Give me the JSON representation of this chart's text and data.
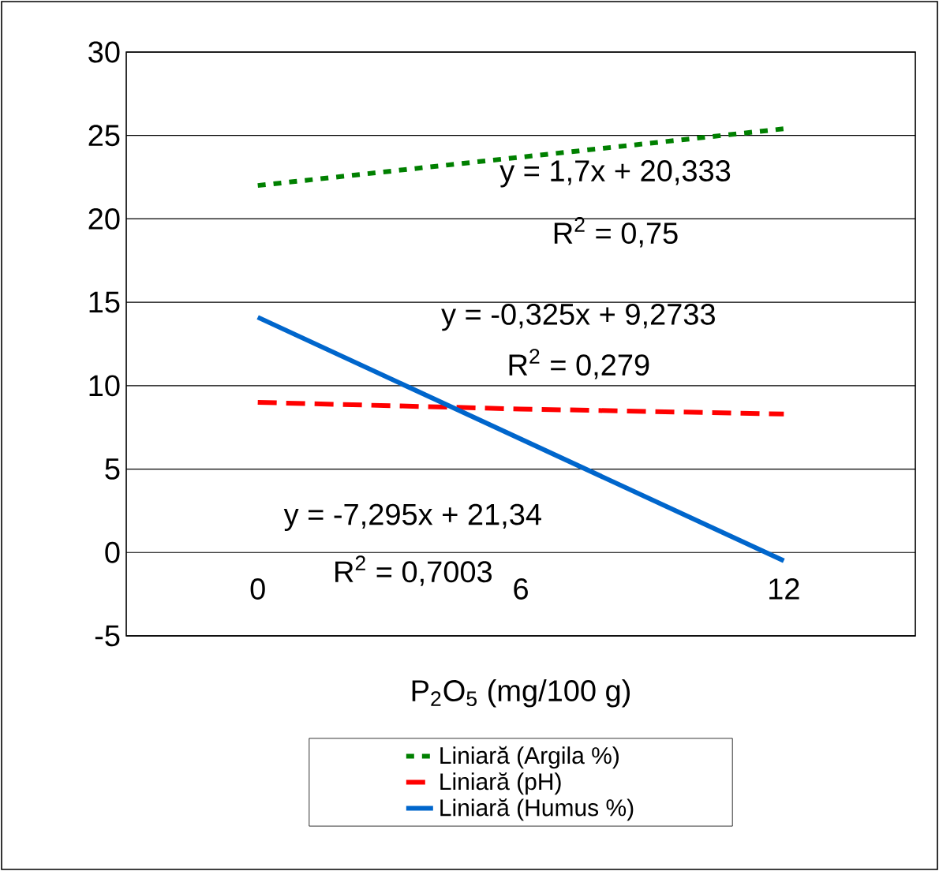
{
  "chart_data": {
    "type": "line",
    "xlabel": "P$_{2}$O$_{5}$ (mg/100 g)",
    "categories": [
      "0",
      "6",
      "12"
    ],
    "series": [
      {
        "name": "Liniară (Argila %)",
        "color": "#008000",
        "line_style": "dotted",
        "values": [
          22.0,
          23.7,
          25.4
        ]
      },
      {
        "name": "Liniară (pH)",
        "color": "#ff0000",
        "line_style": "dashed",
        "values": [
          9.0,
          8.6,
          8.3
        ]
      },
      {
        "name": "Liniară (Humus %)",
        "color": "#0066cc",
        "line_style": "solid",
        "values": [
          14.1,
          6.8,
          -0.5
        ]
      }
    ],
    "ylim": [
      -5,
      30
    ],
    "yticks": [
      -5,
      0,
      5,
      10,
      15,
      20,
      25,
      30
    ],
    "grid": "y",
    "legend": "bottom",
    "marker": "none",
    "annotations": [
      "y = 1,7x + 20,333",
      "R$^{2}$ = 0,75",
      "y = -0,325x + 9,2733",
      "R$^{2}$ = 0,279",
      "y = -7,295x + 21,34",
      "R$^{2}$ = 0,7003"
    ]
  }
}
